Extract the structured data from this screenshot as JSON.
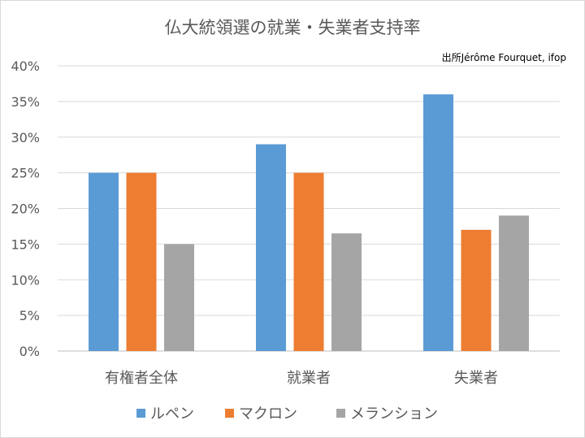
{
  "chart_data": {
    "type": "bar",
    "title": "仏大統領選の就業・失業者支持率",
    "source": "出所Jérôme Fourquet, ifop",
    "categories": [
      "有権者全体",
      "就業者",
      "失業者"
    ],
    "series": [
      {
        "name": "ルペン",
        "color": "#5b9bd5",
        "values": [
          25,
          29,
          36
        ]
      },
      {
        "name": "マクロン",
        "color": "#ed7d31",
        "values": [
          25,
          25,
          17
        ]
      },
      {
        "name": "メランション",
        "color": "#a5a5a5",
        "values": [
          15,
          16.5,
          19
        ]
      }
    ],
    "ylim": [
      0,
      40
    ],
    "yticks": [
      0,
      5,
      10,
      15,
      20,
      25,
      30,
      35,
      40
    ],
    "ytick_labels": [
      "0%",
      "5%",
      "10%",
      "15%",
      "20%",
      "25%",
      "30%",
      "35%",
      "40%"
    ],
    "xlabel": "",
    "ylabel": "",
    "grid": true,
    "legend_position": "bottom"
  }
}
